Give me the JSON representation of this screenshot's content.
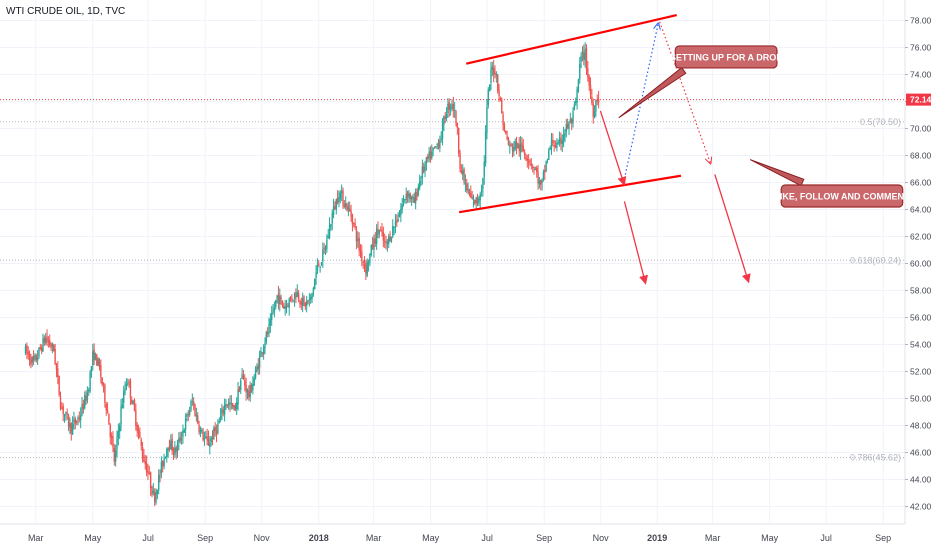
{
  "chart_data": {
    "type": "candlestick",
    "title": "WTI CRUDE OIL, 1D, TVC",
    "current_price_label": "72.14",
    "current_price": 72.14,
    "ylim": [
      41.0,
      79.0
    ],
    "y_ticks": [
      "42.00",
      "44.00",
      "46.00",
      "48.00",
      "50.00",
      "52.00",
      "54.00",
      "56.00",
      "58.00",
      "60.00",
      "62.00",
      "64.00",
      "66.00",
      "68.00",
      "70.00",
      "72.00",
      "74.00",
      "76.00",
      "78.00"
    ],
    "x_ticks": [
      {
        "label": "Mar",
        "t": 0.06
      },
      {
        "label": "May",
        "t": 2.08
      },
      {
        "label": "Jul",
        "t": 4.04
      },
      {
        "label": "Sep",
        "t": 6.06
      },
      {
        "label": "Nov",
        "t": 8.06
      },
      {
        "label": "2018",
        "t": 10.08
      },
      {
        "label": "Mar",
        "t": 12.02
      },
      {
        "label": "May",
        "t": 14.04
      },
      {
        "label": "Jul",
        "t": 16.04
      },
      {
        "label": "Sep",
        "t": 18.06
      },
      {
        "label": "Nov",
        "t": 20.06
      },
      {
        "label": "2019",
        "t": 22.06
      },
      {
        "label": "Mar",
        "t": 24.02
      },
      {
        "label": "May",
        "t": 26.04
      },
      {
        "label": "Jul",
        "t": 28.04
      },
      {
        "label": "Sep",
        "t": 30.06
      }
    ],
    "fib_levels": [
      {
        "label": "0.5(70.50)",
        "value": 70.5
      },
      {
        "label": "0.618(60.24)",
        "value": 60.24
      },
      {
        "label": "0.786(45.62)",
        "value": 45.62
      }
    ],
    "price_path": [
      [
        -0.3,
        53.5
      ],
      [
        0.0,
        52.6
      ],
      [
        0.4,
        54.5
      ],
      [
        0.7,
        53.6
      ],
      [
        0.95,
        49.5
      ],
      [
        1.3,
        47.8
      ],
      [
        1.6,
        48.6
      ],
      [
        1.9,
        50.5
      ],
      [
        2.1,
        53.4
      ],
      [
        2.3,
        52.4
      ],
      [
        2.6,
        49.0
      ],
      [
        2.85,
        45.3
      ],
      [
        3.1,
        49.5
      ],
      [
        3.3,
        51.6
      ],
      [
        3.55,
        49.0
      ],
      [
        3.85,
        45.8
      ],
      [
        4.0,
        44.8
      ],
      [
        4.25,
        42.6
      ],
      [
        4.5,
        44.8
      ],
      [
        4.75,
        46.8
      ],
      [
        5.0,
        46.0
      ],
      [
        5.3,
        47.8
      ],
      [
        5.6,
        49.8
      ],
      [
        5.9,
        47.5
      ],
      [
        6.15,
        46.6
      ],
      [
        6.5,
        47.9
      ],
      [
        6.8,
        49.8
      ],
      [
        7.1,
        49.1
      ],
      [
        7.35,
        51.7
      ],
      [
        7.6,
        50.2
      ],
      [
        7.85,
        51.9
      ],
      [
        8.1,
        53.9
      ],
      [
        8.35,
        55.3
      ],
      [
        8.6,
        57.6
      ],
      [
        8.85,
        56.8
      ],
      [
        9.1,
        57.4
      ],
      [
        9.3,
        57.9
      ],
      [
        9.55,
        56.9
      ],
      [
        9.8,
        57.3
      ],
      [
        10.0,
        59.5
      ],
      [
        10.3,
        61.0
      ],
      [
        10.55,
        63.6
      ],
      [
        10.8,
        65.3
      ],
      [
        11.0,
        64.5
      ],
      [
        11.25,
        63.5
      ],
      [
        11.5,
        61.2
      ],
      [
        11.75,
        59.6
      ],
      [
        12.0,
        61.4
      ],
      [
        12.2,
        62.6
      ],
      [
        12.45,
        61.2
      ],
      [
        12.7,
        62.6
      ],
      [
        12.95,
        63.8
      ],
      [
        13.2,
        65.4
      ],
      [
        13.45,
        64.4
      ],
      [
        13.7,
        66.6
      ],
      [
        13.95,
        67.7
      ],
      [
        14.2,
        68.5
      ],
      [
        14.4,
        69.4
      ],
      [
        14.6,
        71.4
      ],
      [
        14.8,
        72.0
      ],
      [
        14.95,
        70.5
      ],
      [
        15.1,
        67.0
      ],
      [
        15.3,
        65.6
      ],
      [
        15.5,
        64.6
      ],
      [
        15.7,
        64.6
      ],
      [
        15.9,
        66.3
      ],
      [
        16.05,
        72.0
      ],
      [
        16.2,
        74.5
      ],
      [
        16.35,
        74.2
      ],
      [
        16.5,
        72.0
      ],
      [
        16.65,
        69.8
      ],
      [
        16.85,
        68.5
      ],
      [
        17.05,
        68.8
      ],
      [
        17.3,
        68.4
      ],
      [
        17.55,
        67.7
      ],
      [
        17.75,
        66.9
      ],
      [
        17.95,
        65.5
      ],
      [
        18.15,
        67.7
      ],
      [
        18.35,
        69.1
      ],
      [
        18.55,
        68.5
      ],
      [
        18.75,
        69.7
      ],
      [
        18.9,
        70.2
      ],
      [
        19.05,
        70.6
      ],
      [
        19.2,
        72.1
      ],
      [
        19.35,
        75.2
      ],
      [
        19.5,
        75.6
      ],
      [
        19.65,
        73.2
      ],
      [
        19.8,
        71.2
      ],
      [
        19.92,
        72.4
      ],
      [
        20.02,
        72.14
      ]
    ],
    "resistance_line": [
      [
        15.3,
        74.8
      ],
      [
        22.75,
        78.4
      ]
    ],
    "support_line": [
      [
        15.05,
        63.8
      ],
      [
        22.9,
        66.5
      ]
    ],
    "blue_projection": [
      [
        20.9,
        66.3
      ],
      [
        22.1,
        77.8
      ]
    ],
    "red_projection": [
      [
        22.15,
        77.9
      ],
      [
        23.95,
        67.4
      ]
    ],
    "arrows": [
      [
        [
          20.05,
          71.3
        ],
        [
          20.9,
          65.8
        ]
      ],
      [
        [
          20.9,
          64.6
        ],
        [
          21.65,
          58.5
        ]
      ],
      [
        [
          24.1,
          66.6
        ],
        [
          25.3,
          58.6
        ]
      ]
    ],
    "annotations": [
      {
        "text": "SETTING UP FOR A DROP",
        "tail": [
          20.7,
          70.8
        ],
        "attach": [
          23.0,
          74.3
        ],
        "box_center": [
          24.5,
          75.3
        ],
        "box_w": 3.6,
        "box_h": 1.55
      },
      {
        "text": "LIKE, FOLLOW AND COMMENT",
        "tail": [
          25.35,
          67.7
        ],
        "attach": [
          27.2,
          66.0
        ],
        "box_center": [
          28.6,
          65.0
        ],
        "box_w": 4.3,
        "box_h": 1.55
      }
    ]
  }
}
